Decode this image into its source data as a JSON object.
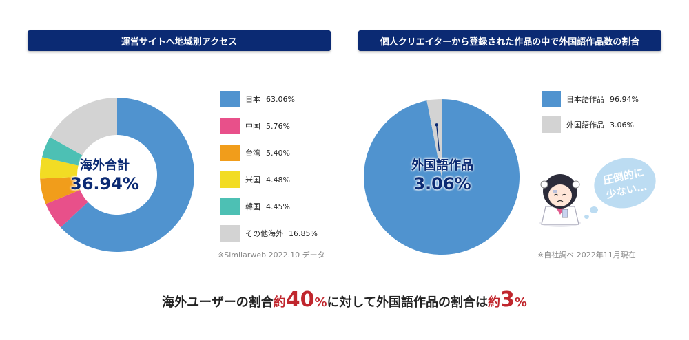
{
  "left_panel": {
    "title": "運営サイトへ地域別アクセス",
    "center_line1": "海外合計",
    "center_line2": "36.94%",
    "source": "※Similarweb 2022.10 データ"
  },
  "right_panel": {
    "title": "個人クリエイターから登録された作品の中で外国語作品数の割合",
    "center_line1": "外国語作品",
    "center_line2": "3.06%",
    "source": "※自社調べ 2022年11月現在",
    "bubble_line1": "圧倒的に",
    "bubble_line2": "少ない…"
  },
  "footer": {
    "part1": "海外ユーザーの割合",
    "part2": "約",
    "part3": "40",
    "part4": "%",
    "part5": "に対して外国語作品の割合は",
    "part6": "約",
    "part7": "3",
    "part8": "%"
  },
  "chart_data": [
    {
      "type": "pie",
      "title": "運営サイトへ地域別アクセス",
      "donut": true,
      "categories": [
        "日本",
        "中国",
        "台湾",
        "米国",
        "韓国",
        "その他海外"
      ],
      "values": [
        63.06,
        5.76,
        5.4,
        4.48,
        4.45,
        16.85
      ],
      "labels": [
        "63.06%",
        "5.76%",
        "5.40%",
        "4.48%",
        "4.45%",
        "16.85%"
      ],
      "colors": [
        "#5093cf",
        "#e8508a",
        "#f19d1b",
        "#f2dc24",
        "#4dc0b4",
        "#d3d3d3"
      ],
      "legend_placement": "right"
    },
    {
      "type": "pie",
      "title": "個人クリエイターから登録された作品の中で外国語作品数の割合",
      "donut": false,
      "categories": [
        "日本語作品",
        "外国語作品"
      ],
      "values": [
        96.94,
        3.06
      ],
      "labels": [
        "96.94%",
        "3.06%"
      ],
      "colors": [
        "#5093cf",
        "#d3d3d3"
      ],
      "legend_placement": "right"
    }
  ]
}
